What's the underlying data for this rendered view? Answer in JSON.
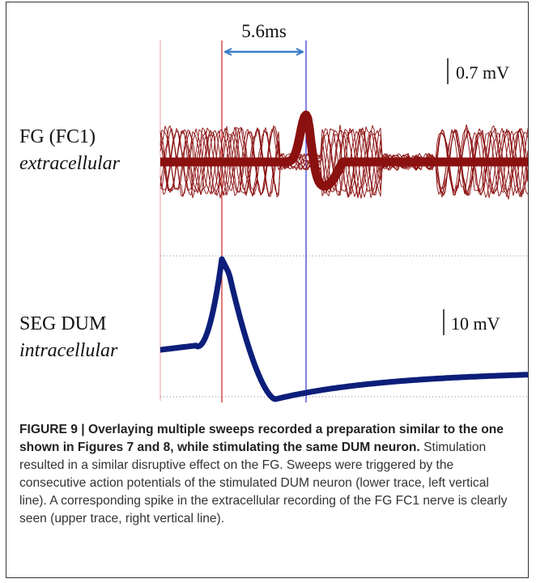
{
  "figure": {
    "interval_label": "5.6ms",
    "top_trace": {
      "label": "FG (FC1)",
      "sublabel": "extracellular",
      "scale_label": "0.7 mV",
      "color": "#8b1010"
    },
    "bottom_trace": {
      "label": "SEG DUM",
      "sublabel": "intracellular",
      "scale_label": "10 mV",
      "color": "#0d1f7a"
    },
    "left_line_color": "#d02020",
    "right_line_color": "#3030d0",
    "arrow_color": "#3a7bc8"
  },
  "caption": {
    "bold": "FIGURE 9 | Overlaying multiple sweeps recorded a preparation similar to the one shown in Figures 7 and 8, while stimulating the same DUM neuron.",
    "text": " Stimulation resulted in a similar disruptive effect on the FG. Sweeps were triggered by the consecutive action potentials of the stimulated DUM neuron (lower trace, left vertical line). A corresponding spike in the extracellular recording of the FG FC1 nerve is clearly seen (upper trace, right vertical line)."
  }
}
